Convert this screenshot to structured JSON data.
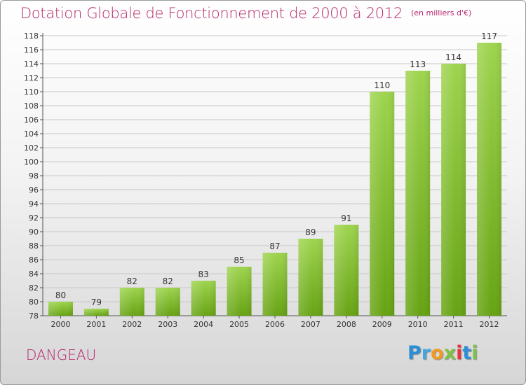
{
  "title": "Dotation Globale de Fonctionnement de 2000 à 2012",
  "unit_note": "(en milliers d'€)",
  "commune": "DANGEAU",
  "logo": {
    "letters": [
      "P",
      "r",
      "o",
      "x",
      "i",
      "t",
      "i"
    ],
    "colors": [
      "#2a8fd6",
      "#3fa7e0",
      "#f29a1f",
      "#7dc242",
      "#e8343c",
      "#2a8fd6",
      "#7dc242"
    ]
  },
  "colors": {
    "title": "#b5266c",
    "bar_top": "#9ed44e",
    "bar_bottom": "#66a313",
    "grid": "#c8c8c8"
  },
  "chart_data": {
    "type": "bar",
    "categories": [
      "2000",
      "2001",
      "2002",
      "2003",
      "2004",
      "2005",
      "2006",
      "2007",
      "2008",
      "2009",
      "2010",
      "2011",
      "2012"
    ],
    "values": [
      80,
      79,
      82,
      82,
      83,
      85,
      87,
      89,
      91,
      110,
      113,
      114,
      117
    ],
    "ylim": [
      78,
      118
    ],
    "ytick_step": 2,
    "grid": true,
    "data_labels": true
  }
}
